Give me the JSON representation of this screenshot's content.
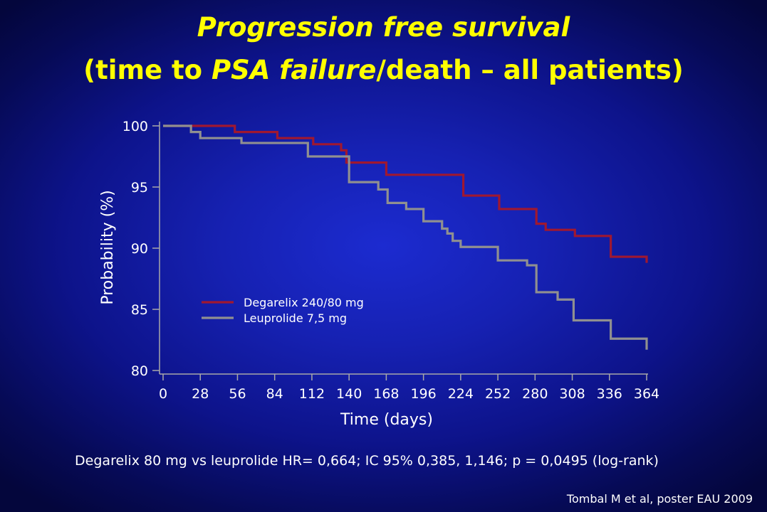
{
  "title": {
    "line1": "Progression free survival",
    "line2_pre": "(time to ",
    "line2_italic": "PSA failure",
    "line2_post": "/death – all patients)"
  },
  "chart_data": {
    "type": "line",
    "title": "Progression free survival (time to PSA failure/death – all patients)",
    "xlabel": "Time (days)",
    "ylabel": "Probability (%)",
    "xlim": [
      0,
      364
    ],
    "ylim": [
      80,
      100
    ],
    "xticks": [
      0,
      28,
      56,
      84,
      112,
      140,
      168,
      196,
      224,
      252,
      280,
      308,
      336,
      364
    ],
    "yticks": [
      80,
      85,
      90,
      95,
      100
    ],
    "grid": false,
    "legend_position": "lower-left",
    "series": [
      {
        "name": "Degarelix 240/80 mg",
        "color": "#a01830",
        "step": true,
        "x": [
          0,
          54,
          86,
          113,
          134,
          138,
          168,
          226,
          253,
          281,
          288,
          310,
          337,
          364
        ],
        "y": [
          100,
          99.5,
          99.0,
          98.5,
          98.0,
          97.0,
          96.0,
          94.3,
          93.2,
          92.0,
          91.5,
          91.0,
          89.3,
          88.8
        ]
      },
      {
        "name": "Leuprolide 7,5 mg",
        "color": "#909090",
        "step": true,
        "x": [
          0,
          21,
          28,
          59,
          109,
          140,
          162,
          169,
          183,
          196,
          210,
          214,
          218,
          224,
          252,
          274,
          281,
          297,
          309,
          337,
          364
        ],
        "y": [
          100,
          99.5,
          99.0,
          98.6,
          97.5,
          95.4,
          94.8,
          93.7,
          93.2,
          92.2,
          91.6,
          91.2,
          90.6,
          90.1,
          89.0,
          88.6,
          86.4,
          85.8,
          84.1,
          82.6,
          81.7
        ]
      }
    ]
  },
  "footnote": "Degarelix 80 mg vs leuprolide HR= 0,664; IC 95% 0,385, 1,146; p = 0,0495 (log-rank)",
  "source": "Tombal M et al, poster EAU 2009"
}
